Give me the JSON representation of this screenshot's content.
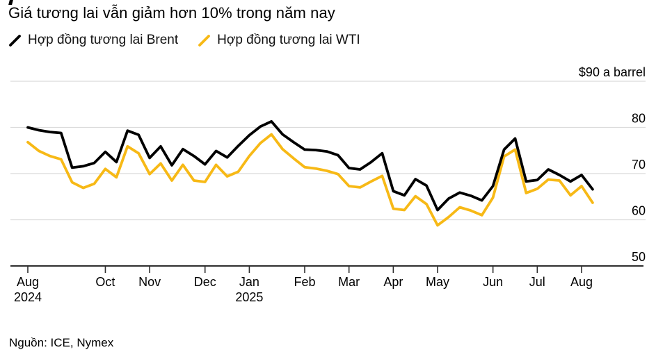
{
  "header": {
    "title": "Giá tương lai vẫn giảm hơn 10% trong năm nay"
  },
  "legend": [
    {
      "label": "Hợp đồng tương lai Brent",
      "color": "#000000"
    },
    {
      "label": "Hợp đồng tương lai WTI",
      "color": "#F7B916"
    }
  ],
  "footer": {
    "source": "Nguồn: ICE, Nymex"
  },
  "chart_data": {
    "type": "line",
    "title": "Giá tương lai vẫn giảm hơn 10% trong năm nay",
    "ylabel": "$90 a barrel",
    "ylim": [
      50,
      91
    ],
    "grid": true,
    "legend_position": "top",
    "frequency": "weekly",
    "y_ticks": [
      {
        "value": 90,
        "label": "$90 a barrel"
      },
      {
        "value": 80,
        "label": "80"
      },
      {
        "value": 70,
        "label": "70"
      },
      {
        "value": 60,
        "label": "60"
      },
      {
        "value": 50,
        "label": "50"
      }
    ],
    "x_ticks": [
      {
        "index": 0,
        "label": "Aug",
        "sublabel": "2024"
      },
      {
        "index": 7,
        "label": "Oct"
      },
      {
        "index": 11,
        "label": "Nov"
      },
      {
        "index": 16,
        "label": "Dec"
      },
      {
        "index": 20,
        "label": "Jan",
        "sublabel": "2025"
      },
      {
        "index": 25,
        "label": "Feb"
      },
      {
        "index": 29,
        "label": "Mar"
      },
      {
        "index": 33,
        "label": "Apr"
      },
      {
        "index": 37,
        "label": "May"
      },
      {
        "index": 42,
        "label": "Jun"
      },
      {
        "index": 46,
        "label": "Jul"
      },
      {
        "index": 50,
        "label": "Aug"
      }
    ],
    "series": [
      {
        "name": "Hợp đồng tương lai Brent",
        "color": "#000000",
        "values": [
          80.0,
          79.4,
          79.0,
          78.8,
          71.3,
          71.6,
          72.3,
          74.7,
          72.5,
          79.3,
          78.4,
          73.4,
          75.9,
          71.8,
          75.3,
          73.8,
          72.0,
          74.9,
          73.5,
          76.0,
          78.3,
          80.2,
          81.3,
          78.5,
          76.8,
          75.2,
          75.1,
          74.8,
          74.0,
          71.2,
          70.9,
          72.5,
          74.4,
          66.2,
          65.3,
          68.8,
          67.4,
          62.1,
          64.6,
          65.9,
          65.2,
          64.2,
          67.3,
          75.2,
          77.6,
          68.3,
          68.6,
          70.9,
          69.7,
          68.3,
          69.7,
          66.6
        ]
      },
      {
        "name": "Hợp đồng tương lai WTI",
        "color": "#F7B916",
        "values": [
          76.8,
          74.9,
          73.8,
          73.1,
          68.1,
          66.9,
          67.8,
          71.0,
          69.2,
          75.9,
          74.4,
          69.9,
          72.2,
          68.5,
          71.9,
          68.5,
          68.2,
          71.9,
          69.4,
          70.4,
          73.8,
          76.6,
          78.5,
          75.3,
          73.3,
          71.4,
          71.1,
          70.6,
          69.9,
          67.3,
          67.0,
          68.3,
          69.5,
          62.4,
          62.1,
          65.1,
          63.4,
          58.8,
          60.6,
          62.7,
          62.0,
          61.0,
          64.8,
          73.7,
          75.2,
          65.8,
          66.7,
          68.7,
          68.5,
          65.3,
          67.3,
          63.7
        ]
      }
    ],
    "colors": {
      "grid": "#DBDBDB",
      "axis": "#2E2E2E",
      "text": "#000000"
    }
  }
}
